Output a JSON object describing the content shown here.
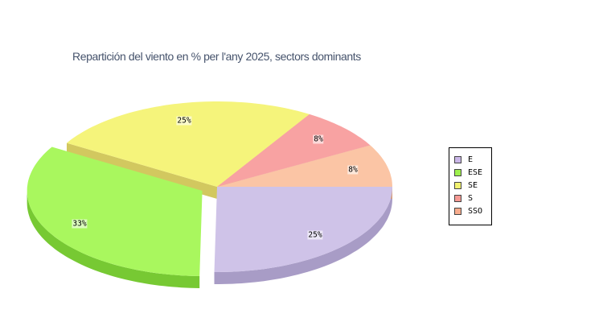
{
  "chart_data": {
    "type": "pie",
    "title": "Repartición del viento en % per l'any 2025, sectors dominants",
    "three_d": true,
    "legend_position": "right",
    "background_color": "#ffffff",
    "title_color": "#46536c",
    "series": [
      {
        "name": "E",
        "value": 25,
        "label": "25%",
        "color": "#cfc3e8",
        "side_color": "#a89cc6",
        "swatch_color": "#cab6e8",
        "exploded": false
      },
      {
        "name": "ESE",
        "value": 33,
        "label": "33%",
        "color": "#a9f75e",
        "side_color": "#77c933",
        "swatch_color": "#9ef04d",
        "exploded": true
      },
      {
        "name": "SE",
        "value": 25,
        "label": "25%",
        "color": "#f5f47b",
        "side_color": "#d2c85f",
        "swatch_color": "#f2f270",
        "exploded": false
      },
      {
        "name": "S",
        "value": 8,
        "label": "8%",
        "color": "#f8a2a2",
        "side_color": "#cc8585",
        "swatch_color": "#f69993",
        "exploded": false
      },
      {
        "name": "SSO",
        "value": 8,
        "label": "8%",
        "color": "#fbc5a5",
        "side_color": "#d49d7c",
        "swatch_color": "#f8ac8d",
        "exploded": false
      }
    ]
  }
}
